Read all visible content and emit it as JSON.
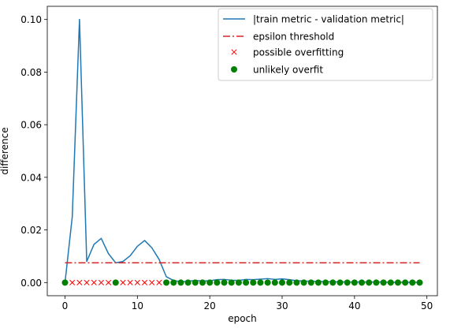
{
  "chart_data": {
    "type": "line",
    "xlabel": "epoch",
    "ylabel": "difference",
    "xlim": [
      -2.45,
      51.45
    ],
    "ylim": [
      -0.005,
      0.105
    ],
    "xticks": [
      0,
      10,
      20,
      30,
      40,
      50
    ],
    "xtick_labels": [
      "0",
      "10",
      "20",
      "30",
      "40",
      "50"
    ],
    "yticks": [
      0.0,
      0.02,
      0.04,
      0.06,
      0.08,
      0.1
    ],
    "ytick_labels": [
      "0.00",
      "0.02",
      "0.04",
      "0.06",
      "0.08",
      "0.10"
    ],
    "grid": false,
    "legend_position": "top-right",
    "legend": [
      "|train metric - validation metric|",
      "epsilon threshold",
      "possible overfitting",
      "unlikely overfit"
    ],
    "colors": {
      "line": "#1f77b4",
      "threshold": "#d62728",
      "possible": "#ff0000",
      "unlikely": "#008000"
    },
    "series": [
      {
        "name": "|train metric - validation metric|",
        "kind": "line",
        "x": [
          0,
          1,
          2,
          3,
          4,
          5,
          6,
          7,
          8,
          9,
          10,
          11,
          12,
          13,
          14,
          15,
          16,
          17,
          18,
          19,
          20,
          21,
          22,
          23,
          24,
          25,
          26,
          27,
          28,
          29,
          30,
          31,
          32,
          33,
          34,
          35,
          36,
          37,
          38,
          39,
          40,
          41,
          42,
          43,
          44,
          45,
          46,
          47,
          48,
          49
        ],
        "y": [
          0.0,
          0.025,
          0.1,
          0.008,
          0.0145,
          0.0168,
          0.011,
          0.0075,
          0.008,
          0.0102,
          0.0138,
          0.016,
          0.0132,
          0.0088,
          0.0022,
          0.0008,
          0.0003,
          0.0005,
          0.0008,
          0.0006,
          0.0007,
          0.0011,
          0.0012,
          0.0009,
          0.0008,
          0.0012,
          0.0011,
          0.0013,
          0.0015,
          0.0012,
          0.0014,
          0.0011,
          0.0007,
          0.0006,
          0.0005,
          0.0004,
          0.0004,
          0.0003,
          0.0003,
          0.0002,
          0.0002,
          0.0002,
          0.0002,
          0.0002,
          0.0002,
          0.0001,
          0.0001,
          0.0001,
          0.0001,
          0.0001
        ]
      },
      {
        "name": "epsilon threshold",
        "kind": "dashdot",
        "x": [
          0,
          49
        ],
        "y": [
          0.0075,
          0.0075
        ]
      },
      {
        "name": "possible overfitting",
        "kind": "markers-x",
        "x": [
          1,
          2,
          3,
          4,
          5,
          6,
          8,
          9,
          10,
          11,
          12,
          13
        ],
        "y": [
          0,
          0,
          0,
          0,
          0,
          0,
          0,
          0,
          0,
          0,
          0,
          0
        ]
      },
      {
        "name": "unlikely overfit",
        "kind": "markers-dot",
        "x": [
          0,
          7,
          14,
          15,
          16,
          17,
          18,
          19,
          20,
          21,
          22,
          23,
          24,
          25,
          26,
          27,
          28,
          29,
          30,
          31,
          32,
          33,
          34,
          35,
          36,
          37,
          38,
          39,
          40,
          41,
          42,
          43,
          44,
          45,
          46,
          47,
          48,
          49
        ],
        "y": [
          0,
          0,
          0,
          0,
          0,
          0,
          0,
          0,
          0,
          0,
          0,
          0,
          0,
          0,
          0,
          0,
          0,
          0,
          0,
          0,
          0,
          0,
          0,
          0,
          0,
          0,
          0,
          0,
          0,
          0,
          0,
          0,
          0,
          0,
          0,
          0,
          0,
          0
        ]
      }
    ]
  }
}
